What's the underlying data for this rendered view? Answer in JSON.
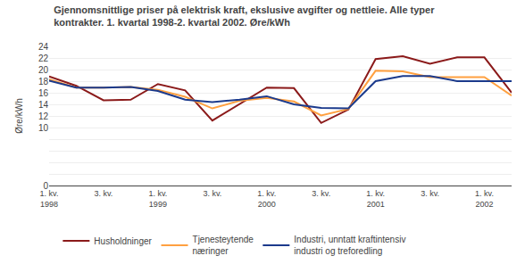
{
  "chart_data": {
    "type": "line",
    "title": "Gjennomsnittlige priser på elektrisk kraft, ekslusive avgifter og nettleie. Alle typer\nkontrakter. 1. kvartal 1998-2. kvartal 2002. Øre/kWh",
    "y_label": "Øre/kWh",
    "categories": [
      "1. kv.\n1998",
      null,
      "3. kv.",
      null,
      "1. kv.\n1999",
      null,
      "3. kv.",
      null,
      "1. kv.\n2000",
      null,
      "3. kv.",
      null,
      "1. kv.\n2001",
      null,
      "3. kv.",
      null,
      "1. kv.\n2002",
      null
    ],
    "series": [
      {
        "name": "Husholdninger",
        "color": "#8B1A1A",
        "values": [
          18.8,
          17.2,
          14.7,
          14.8,
          17.5,
          16.4,
          11.2,
          14.0,
          16.9,
          16.8,
          10.8,
          13.1,
          21.8,
          22.3,
          21.0,
          22.1,
          22.1,
          16.0
        ]
      },
      {
        "name": "Tjenesteytende\nnæringer",
        "color": "#FFA040",
        "values": [
          18.3,
          16.9,
          16.9,
          17.0,
          16.5,
          15.3,
          13.3,
          14.6,
          15.1,
          14.5,
          12.1,
          13.2,
          19.8,
          19.7,
          18.7,
          18.7,
          18.7,
          15.5
        ]
      },
      {
        "name": "Industri, unntatt kraftintensiv\nindustri og treforedling",
        "color": "#1B3A8C",
        "values": [
          18.1,
          16.9,
          16.9,
          17.0,
          16.3,
          14.8,
          14.4,
          14.8,
          15.4,
          14.0,
          13.4,
          13.3,
          18.0,
          18.9,
          18.9,
          18.0,
          18.0,
          18.0
        ]
      }
    ],
    "ylim": [
      0,
      24
    ],
    "yticks": [
      0,
      {
        "value": 2,
        "label": null
      },
      {
        "value": 4,
        "label": null
      },
      {
        "value": 6,
        "label": null
      },
      {
        "value": 8,
        "label": null
      },
      10,
      12,
      14,
      16,
      18,
      20,
      22,
      24
    ],
    "grid": true,
    "legend": "bottom"
  }
}
